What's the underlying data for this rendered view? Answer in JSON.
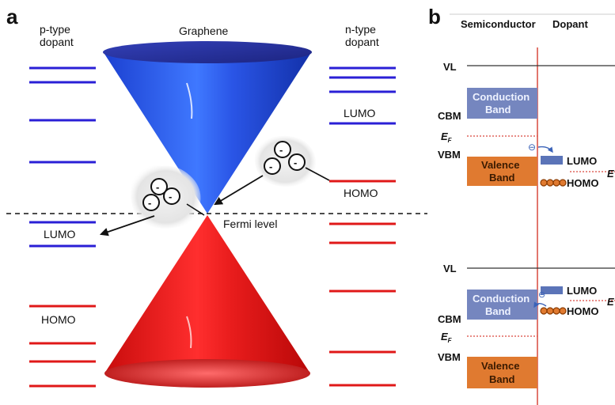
{
  "panel_a": {
    "letter": "a",
    "left_header": [
      "p-type",
      "dopant"
    ],
    "right_header": [
      "n-type",
      "dopant"
    ],
    "graphene_label": "Graphene",
    "fermi_label": "Fermi level",
    "lumo_left": "LUMO",
    "homo_left": "HOMO",
    "lumo_right": "LUMO",
    "homo_right": "HOMO",
    "electron_symbol": "-",
    "colors": {
      "blue_levels": "#2a1fd6",
      "red_levels": "#e01818",
      "upper_cone": "#2f5ce8",
      "lower_cone": "#e81c1c"
    }
  },
  "panel_b": {
    "letter": "b",
    "semiconductor_label": "Semiconductor",
    "dopant_label": "Dopant",
    "top": {
      "vl": "VL",
      "cbm": "CBM",
      "ef": "E",
      "ef_sub": "F",
      "vbm": "VBM",
      "conduction_band": [
        "Conduction",
        "Band"
      ],
      "valence_band": [
        "Valence",
        "Band"
      ],
      "lumo": "LUMO",
      "homo": "HOMO",
      "ef_right": "E",
      "electron_symbol": "⊖"
    },
    "bottom": {
      "vl": "VL",
      "cbm": "CBM",
      "ef": "E",
      "ef_sub": "F",
      "vbm": "VBM",
      "conduction_band": [
        "Conduction",
        "Band"
      ],
      "valence_band": [
        "Valence",
        "Band"
      ],
      "lumo": "LUMO",
      "homo": "HOMO",
      "ef_right": "E",
      "electron_symbol": "⊖"
    },
    "colors": {
      "conduction": "#7586bf",
      "valence": "#e07a30",
      "divider": "#d9483d",
      "ef_line": "#d9483d"
    }
  }
}
